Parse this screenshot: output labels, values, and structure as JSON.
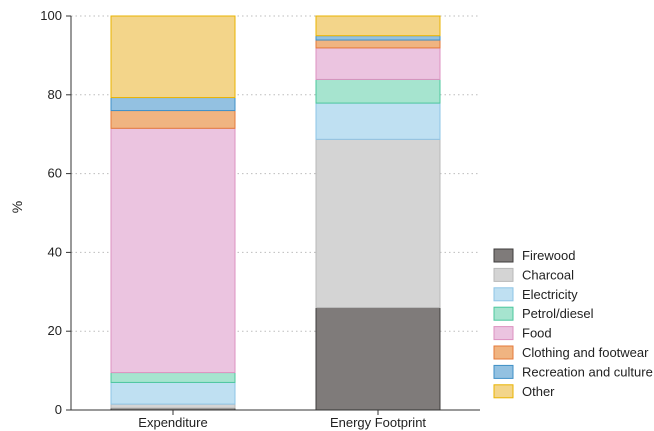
{
  "chart_data": {
    "type": "bar",
    "stacked": true,
    "categories": [
      "Expenditure",
      "Energy Footprint"
    ],
    "ylabel": "%",
    "ylim": [
      0,
      100
    ],
    "yticks": [
      0,
      20,
      40,
      60,
      80,
      100
    ],
    "grid": true,
    "legend_position": "right-bottom",
    "series": [
      {
        "name": "Firewood",
        "color": "#7f7b7a",
        "stroke": "#3f3d3c",
        "values": [
          0.5,
          26.0
        ]
      },
      {
        "name": "Charcoal",
        "color": "#d4d4d4",
        "stroke": "#b9b9b9",
        "values": [
          1.0,
          42.7
        ]
      },
      {
        "name": "Electricity",
        "color": "#bfe0f2",
        "stroke": "#8ec5e6",
        "values": [
          5.5,
          9.2
        ]
      },
      {
        "name": "Petrol/diesel",
        "color": "#a6e4cf",
        "stroke": "#4cc79d",
        "values": [
          2.5,
          6.0
        ]
      },
      {
        "name": "Food",
        "color": "#ebc4e0",
        "stroke": "#dc92c0",
        "values": [
          62.0,
          8.0
        ]
      },
      {
        "name": "Clothing and footwear",
        "color": "#f0b481",
        "stroke": "#e57a3a",
        "values": [
          4.5,
          2.0
        ]
      },
      {
        "name": "Recreation and culture",
        "color": "#93c1e1",
        "stroke": "#3f8fc6",
        "values": [
          3.3,
          1.1
        ]
      },
      {
        "name": "Other",
        "color": "#f3d58a",
        "stroke": "#e8b300",
        "values": [
          20.7,
          5.0
        ]
      }
    ]
  }
}
